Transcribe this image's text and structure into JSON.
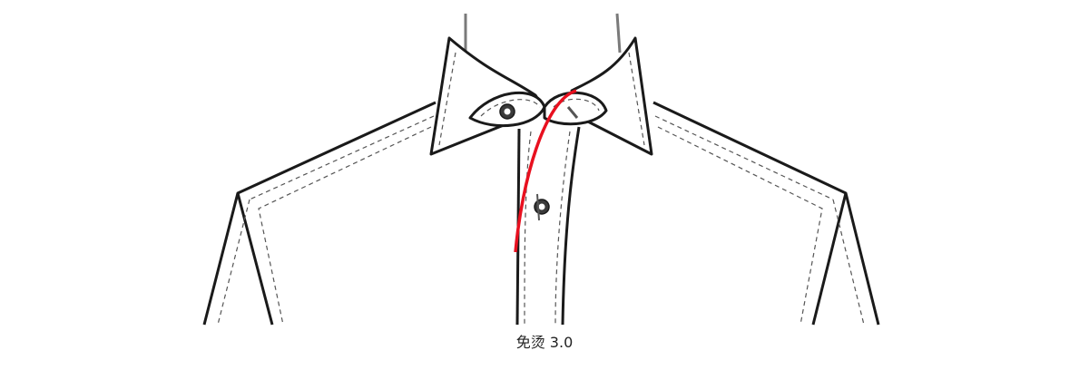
{
  "caption": "免烫 3.0",
  "colors": {
    "outline": "#1a1a1a",
    "stitch": "#555555",
    "highlight": "#e8101f",
    "button_fill": "#3a3a3a",
    "hanger": "#7a7a7a",
    "background": "#ffffff"
  },
  "icons": [
    "shirt-collar-diagram",
    "collar-button-icon",
    "placket-button-icon"
  ]
}
